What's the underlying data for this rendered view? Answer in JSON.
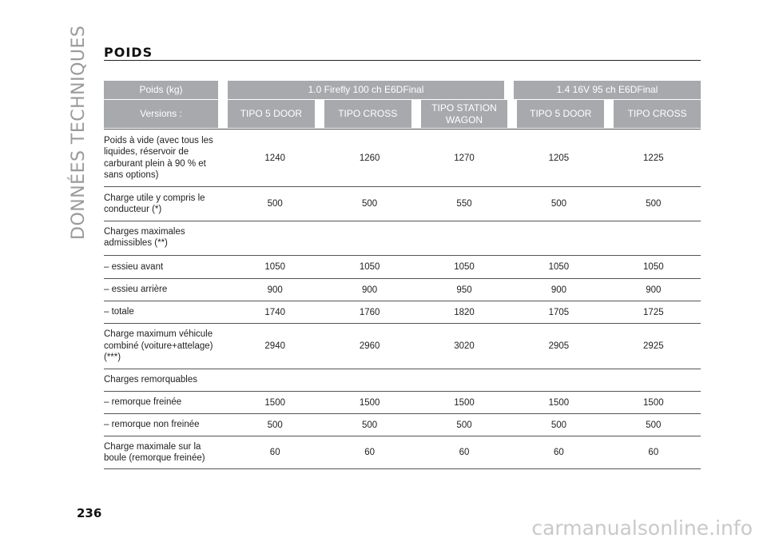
{
  "page": {
    "side_title": "DONNÉES TECHNIQUES",
    "title": "POIDS",
    "number": "236",
    "watermark": "carmanualsonline.info"
  },
  "table": {
    "header_left": "Poids (kg)",
    "header_left_2": "Versions :",
    "engines": [
      "1.0 Firefly 100 ch E6DFinal",
      "1.4 16V 95 ch E6DFinal"
    ],
    "versions": [
      "TIPO 5 DOOR",
      "TIPO CROSS",
      "TIPO STATION WAGON",
      "TIPO 5 DOOR",
      "TIPO CROSS"
    ],
    "rows": [
      {
        "label": "Poids à vide (avec tous les liquides, réservoir de carburant plein à 90 % et sans options)",
        "values": [
          "1240",
          "1260",
          "1270",
          "1205",
          "1225"
        ]
      },
      {
        "label": "Charge utile y compris le conducteur (*)",
        "values": [
          "500",
          "500",
          "550",
          "500",
          "500"
        ]
      },
      {
        "label": "Charges maximales admissibles (**)",
        "values": [
          "",
          "",
          "",
          "",
          ""
        ]
      },
      {
        "label": "– essieu avant",
        "values": [
          "1050",
          "1050",
          "1050",
          "1050",
          "1050"
        ]
      },
      {
        "label": "– essieu arrière",
        "values": [
          "900",
          "900",
          "950",
          "900",
          "900"
        ]
      },
      {
        "label": "– totale",
        "values": [
          "1740",
          "1760",
          "1820",
          "1705",
          "1725"
        ]
      },
      {
        "label": "Charge maximum véhicule combiné (voiture+attelage) (***)",
        "values": [
          "2940",
          "2960",
          "3020",
          "2905",
          "2925"
        ]
      },
      {
        "label": "Charges remorquables",
        "values": [
          "",
          "",
          "",
          "",
          ""
        ]
      },
      {
        "label": "– remorque freinée",
        "values": [
          "1500",
          "1500",
          "1500",
          "1500",
          "1500"
        ]
      },
      {
        "label": "– remorque non freinée",
        "values": [
          "500",
          "500",
          "500",
          "500",
          "500"
        ]
      },
      {
        "label": "Charge maximale sur la boule (remorque freinée)",
        "values": [
          "60",
          "60",
          "60",
          "60",
          "60"
        ]
      }
    ]
  }
}
